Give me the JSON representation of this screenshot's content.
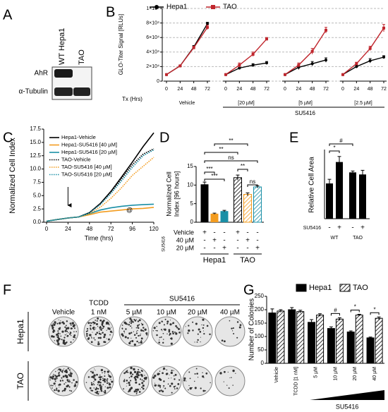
{
  "blot": {
    "panel": "A",
    "lanes": [
      "WT Hepa1",
      "TAO"
    ],
    "rows": [
      "AhR",
      "α-Tubulin"
    ]
  },
  "colonies": {
    "panel": "F",
    "columns": [
      [
        "Vehicle"
      ],
      [
        "TCDD",
        "1 nM"
      ],
      [
        "5 µM"
      ],
      [
        "10 µM"
      ],
      [
        "20 µM"
      ],
      [
        "40 µM"
      ]
    ],
    "treatment": "SU5416",
    "rows": [
      "Hepa1",
      "TAO"
    ]
  },
  "chart_data": [
    {
      "panel": "B",
      "type": "line",
      "ylabel": "GLO-Titer Signal [RLUs]",
      "xlabel": "Tx (Hrs)",
      "x": [
        0,
        24,
        48,
        72
      ],
      "groups": [
        "Vehicle",
        "[20 µM]",
        "[5 µM]",
        "[2.5 µM]"
      ],
      "group_title": "SU5416",
      "ylim": [
        0,
        100000
      ],
      "yticks": [
        0,
        {
          "value": 20000,
          "label": "2×10⁴"
        },
        {
          "value": 40000,
          "label": "4×10⁴"
        },
        {
          "value": 60000,
          "label": "6×10⁴"
        },
        {
          "value": 80000,
          "label": "8×10⁴"
        },
        {
          "value": 100000,
          "label": "1×10⁵"
        }
      ],
      "grid": true,
      "series": [
        {
          "name": "Hepa1",
          "color": "#000000",
          "values": [
            [
              9000,
              21000,
              47000,
              79000
            ],
            [
              9000,
              18000,
              22000,
              25000
            ],
            [
              9000,
              19000,
              24000,
              29000
            ],
            [
              9000,
              20000,
              28000,
              33000
            ]
          ],
          "errors": [
            [
              0,
              0,
              2000,
              2000
            ],
            [
              0,
              1000,
              2000,
              2000
            ],
            [
              0,
              3000,
              3000,
              3000
            ],
            [
              0,
              2000,
              3000,
              2000
            ]
          ]
        },
        {
          "name": "TAO",
          "color": "#c0262d",
          "values": [
            [
              9000,
              21000,
              46000,
              74000
            ],
            [
              9000,
              22000,
              37000,
              58000
            ],
            [
              9000,
              22000,
              41000,
              70000
            ],
            [
              9000,
              24000,
              45000,
              73000
            ]
          ],
          "errors": [
            [
              0,
              0,
              2000,
              3000
            ],
            [
              0,
              3000,
              3000,
              2000
            ],
            [
              0,
              3000,
              4000,
              4000
            ],
            [
              0,
              2000,
              3000,
              5000
            ]
          ]
        }
      ]
    },
    {
      "panel": "C",
      "type": "line",
      "ylabel": "Normalized Cell Index",
      "xlabel": "Time (hrs)",
      "x": [
        0,
        12,
        24,
        36,
        48,
        60,
        72,
        84,
        96,
        108,
        120
      ],
      "xlim": [
        0,
        120
      ],
      "xticks": [
        0,
        24,
        48,
        72,
        96,
        120
      ],
      "ylim": [
        0,
        17.5
      ],
      "yticks": [
        {
          "value": 0,
          "label": "0.0"
        },
        2.5,
        {
          "value": 5,
          "label": "5.0"
        },
        7.5,
        {
          "value": 10,
          "label": "10.0"
        },
        12.5,
        {
          "value": 15,
          "label": "15.0"
        },
        17.5
      ],
      "annotations": [
        "@"
      ],
      "series": [
        {
          "name": "Hepa1-Vehicle",
          "color": "#000000",
          "dashed": false,
          "values": [
            0.2,
            0.5,
            0.8,
            1.0,
            1.8,
            3.5,
            5.8,
            8.5,
            11.3,
            14.2,
            16.8
          ]
        },
        {
          "name": "Hepa1-SU5416 [40 µM]",
          "color": "#f39c1f",
          "dashed": false,
          "values": [
            0.2,
            0.5,
            0.8,
            1.0,
            1.4,
            1.9,
            2.1,
            2.3,
            2.5,
            2.6,
            2.8
          ]
        },
        {
          "name": "Hepa1-SU5416 [20 µM]",
          "color": "#1a8fa6",
          "dashed": false,
          "values": [
            0.2,
            0.5,
            0.8,
            1.0,
            1.6,
            2.3,
            2.7,
            3.0,
            3.2,
            3.3,
            3.4
          ]
        },
        {
          "name": "TAO-Vehicle",
          "color": "#000000",
          "dashed": true,
          "values": [
            0.2,
            0.5,
            0.8,
            1.0,
            1.8,
            3.3,
            5.5,
            8.2,
            10.8,
            12.8,
            13.8
          ]
        },
        {
          "name": "TAO-SU5416 [40 µM]",
          "color": "#f39c1f",
          "dashed": true,
          "values": [
            0.2,
            0.5,
            0.8,
            1.0,
            1.6,
            2.8,
            4.5,
            6.5,
            8.8,
            10.5,
            12.2
          ]
        },
        {
          "name": "TAO-SU5416 [20 µM]",
          "color": "#1a8fa6",
          "dashed": true,
          "values": [
            0.2,
            0.5,
            0.8,
            1.0,
            1.8,
            3.3,
            5.4,
            7.8,
            10.3,
            12.5,
            13.6
          ]
        }
      ]
    },
    {
      "panel": "D",
      "type": "bar",
      "ylabel_lines": [
        "Normalized Cell",
        "Index [96 hours]"
      ],
      "values": [
        10.2,
        2.3,
        3.0,
        12.0,
        7.5,
        9.5
      ],
      "errors": [
        0.6,
        0.15,
        0.2,
        0.7,
        0.4,
        0.3
      ],
      "colors": [
        "#000000",
        "#f39c1f",
        "#1a8fa6",
        "#000000",
        "#f39c1f",
        "#1a8fa6"
      ],
      "hatched": [
        false,
        false,
        false,
        true,
        true,
        true
      ],
      "ylim": [
        0,
        15
      ],
      "yticks": [
        0,
        5,
        10,
        15
      ],
      "treatment": "SU5416",
      "rows": [
        {
          "label": "Vehicle",
          "signs": [
            "+",
            "-",
            "-",
            "+",
            "-",
            "-"
          ]
        },
        {
          "label": "40 µM",
          "signs": [
            "-",
            "+",
            "-",
            "-",
            "+",
            "-"
          ]
        },
        {
          "label": "20 µM",
          "signs": [
            "-",
            "-",
            "+",
            "-",
            "-",
            "+"
          ]
        }
      ],
      "groups": [
        "Hepa1",
        "TAO"
      ],
      "annotations": [
        "**",
        "**",
        "ns",
        "***",
        "***",
        "**",
        "ns"
      ]
    },
    {
      "panel": "E",
      "type": "bar",
      "ylabel": "Relative Cell Area",
      "values": [
        2550,
        4100,
        3350,
        3200
      ],
      "errors": [
        300,
        400,
        100,
        300
      ],
      "colors": [
        "#000000",
        "#000000",
        "#000000",
        "#000000"
      ],
      "hatched": [
        false,
        false,
        false,
        false
      ],
      "ylim": [
        0,
        5000
      ],
      "rows": [
        {
          "label": "SU5416",
          "signs": [
            "-",
            "+",
            "-",
            "+"
          ]
        }
      ],
      "groups": [
        "WT",
        "TAO"
      ],
      "annotations": [
        "*",
        "#"
      ]
    },
    {
      "panel": "G",
      "type": "bar",
      "ylabel": "Number of Colonies",
      "categories": [
        "Vehicle",
        "TCDD [1 nM]",
        "5 µM",
        "10 µM",
        "20 µM",
        "40 µM"
      ],
      "ylim": [
        0,
        250
      ],
      "yticks": [
        0,
        50,
        100,
        150,
        200,
        250
      ],
      "group_title": "SU5416",
      "annotations": [
        "#",
        "*",
        "*"
      ],
      "series": [
        {
          "name": "Hepa1",
          "color": "#000000",
          "hatched": false,
          "values": [
            188,
            200,
            153,
            130,
            117,
            95
          ],
          "errors": [
            15,
            8,
            10,
            6,
            4,
            3
          ]
        },
        {
          "name": "TAO",
          "color": "#000000",
          "hatched": true,
          "values": [
            195,
            193,
            180,
            165,
            180,
            168
          ],
          "errors": [
            5,
            5,
            5,
            5,
            3,
            5
          ]
        }
      ]
    }
  ]
}
